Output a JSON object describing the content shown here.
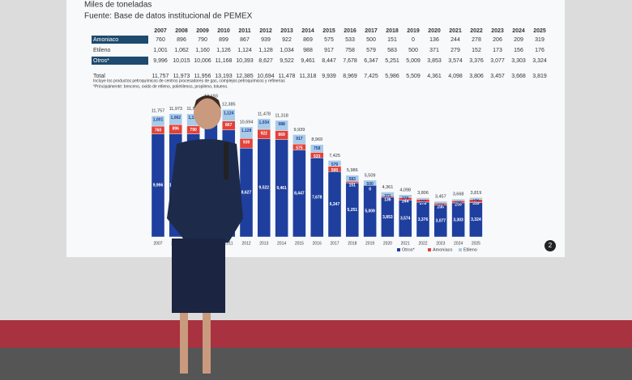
{
  "chart_data": {
    "type": "bar",
    "title": "Miles de toneladas",
    "subtitle": "Fuente: Base de datos institucional de PEMEX",
    "notes": [
      "Incluye los productos petroquímicos de centros procesadores de gas, complejos petroquímicos y refinerías",
      "*Principalmente: benceno, oxido de etileno, polietilenos, propileno, tolueno."
    ],
    "total_label": "Total",
    "page_number": "2",
    "categories": [
      "2007",
      "2008",
      "2009",
      "2010",
      "2011",
      "2012",
      "2013",
      "2014",
      "2015",
      "2016",
      "2017",
      "2018",
      "2019",
      "2020",
      "2021",
      "2022",
      "2023",
      "2024",
      "2025"
    ],
    "series": [
      {
        "name": "Otros*",
        "color": "#1f3f9e",
        "values": [
          9996,
          10015,
          10006,
          11168,
          10393,
          8627,
          9522,
          9461,
          8447,
          7678,
          6347,
          5251,
          5009,
          3853,
          3574,
          3376,
          3077,
          3303,
          3324
        ],
        "value_labels": [
          "9,996",
          "10,015",
          "10,006",
          "11,168",
          "10,393",
          "8,627",
          "9,522",
          "9,461",
          "8,447",
          "7,678",
          "6,347",
          "5,251",
          "5,009",
          "3,853",
          "3,574",
          "3,376",
          "3,077",
          "3,303",
          "3,324"
        ]
      },
      {
        "name": "Amoniaco",
        "color": "#e2423a",
        "values": [
          760,
          896,
          790,
          899,
          867,
          939,
          922,
          869,
          575,
          533,
          500,
          151,
          0,
          136,
          244,
          278,
          206,
          209,
          319
        ]
      },
      {
        "name": "Etileno",
        "color": "#a8cbe8",
        "values": [
          1001,
          1062,
          1160,
          1126,
          1124,
          1128,
          1034,
          988,
          917,
          758,
          579,
          583,
          500,
          371,
          279,
          152,
          173,
          156,
          176
        ],
        "value_labels": [
          "1,001",
          "1,062",
          "1,160",
          "1,126",
          "1,124",
          "1,128",
          "1,034",
          "988",
          "917",
          "758",
          "579",
          "583",
          "500",
          "371",
          "279",
          "152",
          "173",
          "156",
          "176"
        ]
      }
    ],
    "totals": [
      11757,
      11973,
      11956,
      13193,
      12385,
      10694,
      11478,
      11318,
      9939,
      8969,
      7425,
      5986,
      5509,
      4361,
      4098,
      3806,
      3457,
      3668,
      3819
    ],
    "totals_labels": [
      "11,757",
      "11,973",
      "11,956",
      "13,193",
      "12,385",
      "10,694",
      "11,478",
      "11,318",
      "9,939",
      "8,969",
      "7,425",
      "5,986",
      "5,509",
      "4,361",
      "4,098",
      "3,806",
      "3,457",
      "3,668",
      "3,819"
    ]
  }
}
